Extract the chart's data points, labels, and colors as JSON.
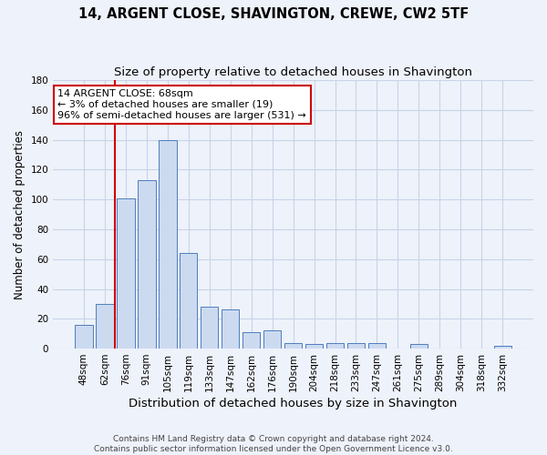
{
  "title": "14, ARGENT CLOSE, SHAVINGTON, CREWE, CW2 5TF",
  "subtitle": "Size of property relative to detached houses in Shavington",
  "xlabel": "Distribution of detached houses by size in Shavington",
  "ylabel": "Number of detached properties",
  "categories": [
    "48sqm",
    "62sqm",
    "76sqm",
    "91sqm",
    "105sqm",
    "119sqm",
    "133sqm",
    "147sqm",
    "162sqm",
    "176sqm",
    "190sqm",
    "204sqm",
    "218sqm",
    "233sqm",
    "247sqm",
    "261sqm",
    "275sqm",
    "289sqm",
    "304sqm",
    "318sqm",
    "332sqm"
  ],
  "values": [
    16,
    30,
    101,
    113,
    140,
    64,
    28,
    26,
    11,
    12,
    4,
    3,
    4,
    4,
    4,
    0,
    3,
    0,
    0,
    0,
    2
  ],
  "bar_color": "#ccdaf0",
  "bar_edge_color": "#4d7dbf",
  "grid_color": "#c8d4e8",
  "background_color": "#eef2fa",
  "vline_x": 1.5,
  "vline_color": "#cc0000",
  "annotation_line1": "14 ARGENT CLOSE: 68sqm",
  "annotation_line2": "← 3% of detached houses are smaller (19)",
  "annotation_line3": "96% of semi-detached houses are larger (531) →",
  "annotation_box_color": "#ffffff",
  "annotation_box_edge": "#cc0000",
  "ylim": [
    0,
    180
  ],
  "yticks": [
    0,
    20,
    40,
    60,
    80,
    100,
    120,
    140,
    160,
    180
  ],
  "footer": "Contains HM Land Registry data © Crown copyright and database right 2024.\nContains public sector information licensed under the Open Government Licence v3.0.",
  "title_fontsize": 10.5,
  "subtitle_fontsize": 9.5,
  "xlabel_fontsize": 9.5,
  "ylabel_fontsize": 8.5,
  "tick_fontsize": 7.5,
  "annotation_fontsize": 8,
  "footer_fontsize": 6.5
}
